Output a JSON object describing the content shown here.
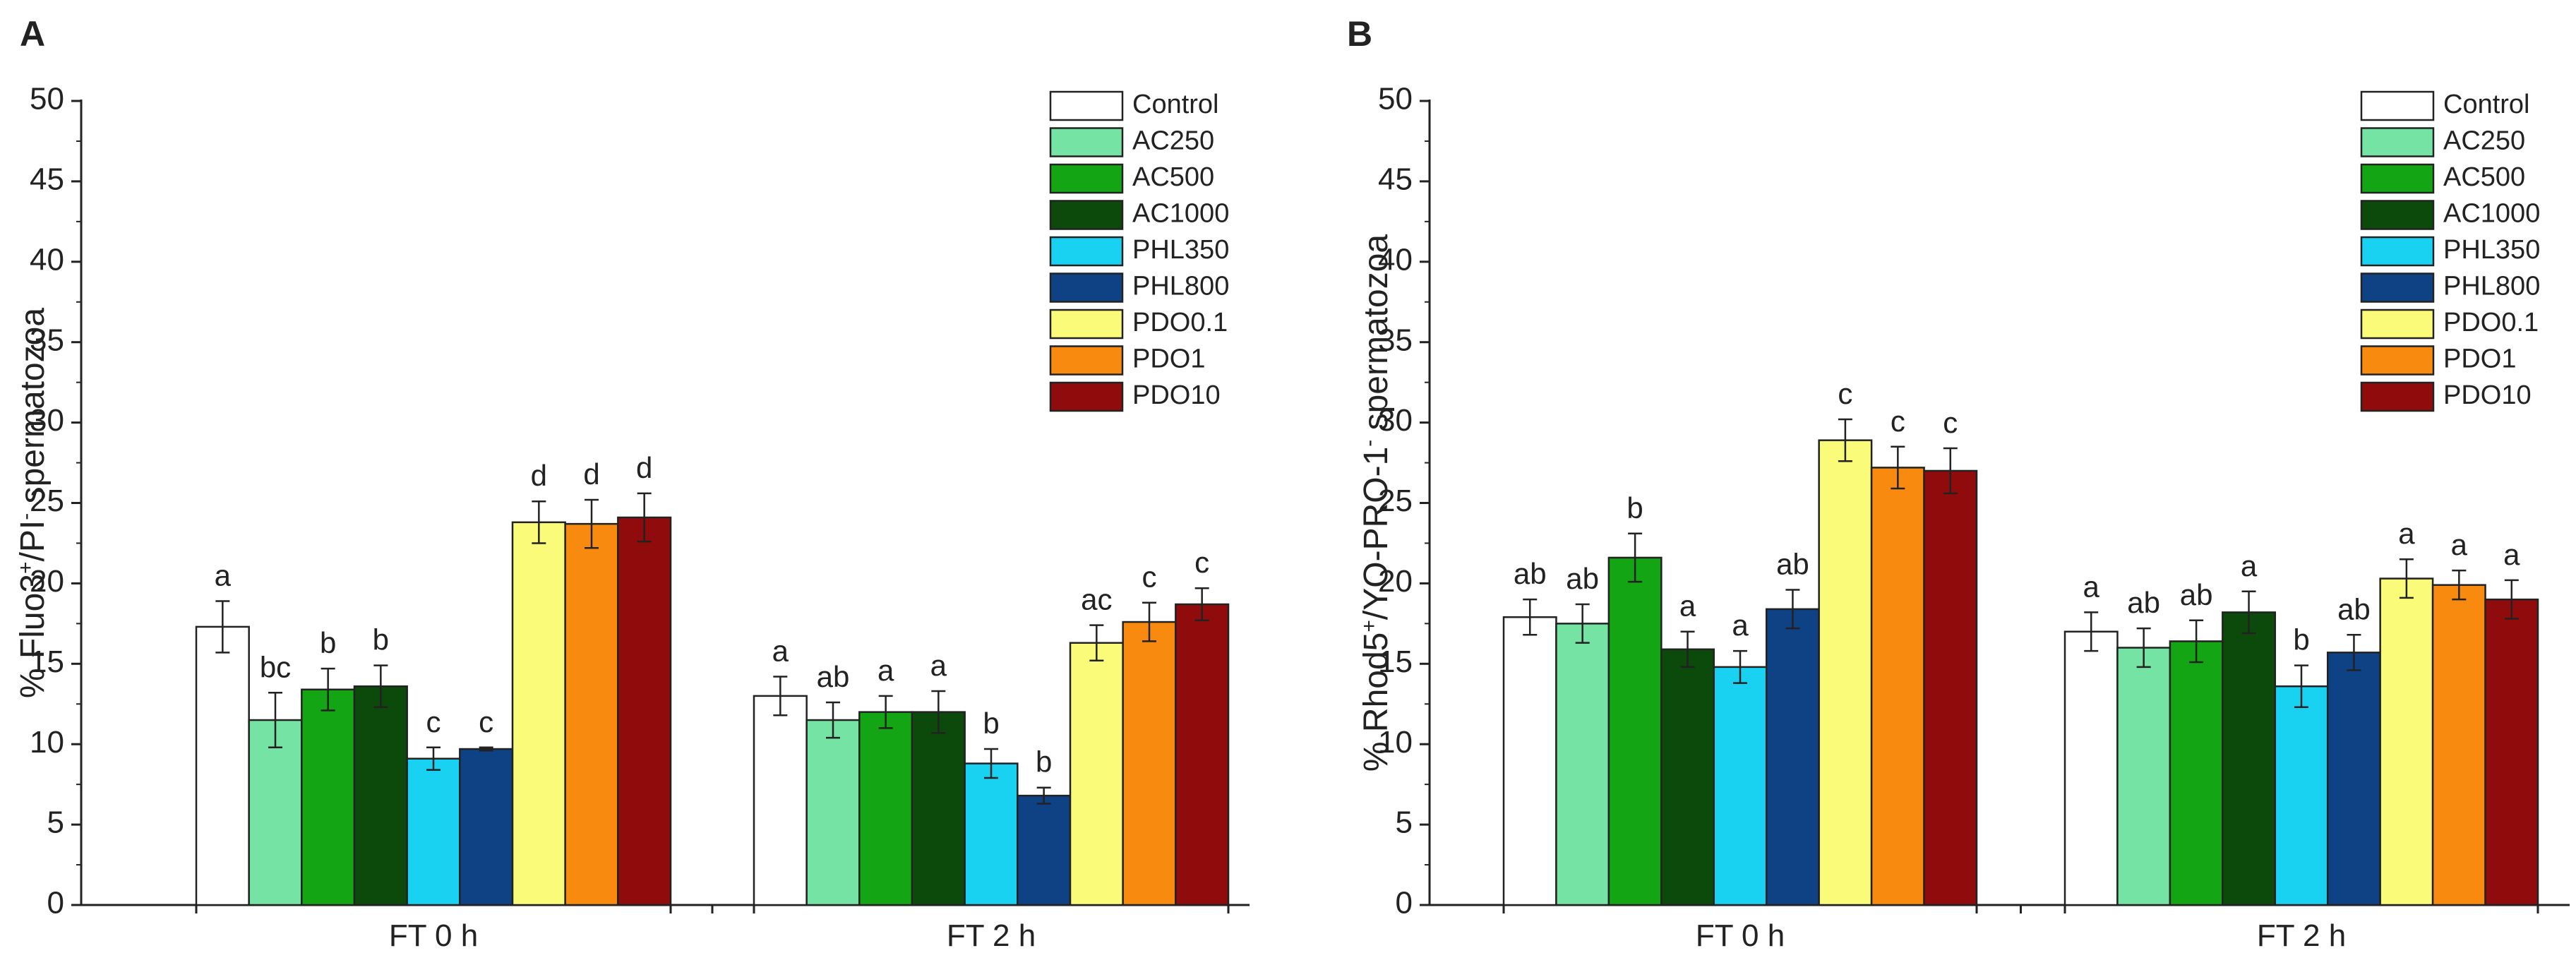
{
  "colors": {
    "Control": "#ffffff",
    "AC250": "#74e3a3",
    "AC500": "#13a513",
    "AC1000": "#0c4a0c",
    "PHL350": "#19d2f2",
    "PHL800": "#0e4284",
    "PDO0.1": "#fbfb7a",
    "PDO1": "#f98a10",
    "PDO10": "#900c0c"
  },
  "chart_data": [
    {
      "type": "bar",
      "panel_label": "A",
      "ylabel_parts": [
        "% Fluo3",
        "+",
        "/PI",
        "-",
        " spermatozoa"
      ],
      "ylim": [
        0,
        50
      ],
      "yticks": [
        0,
        5,
        10,
        15,
        20,
        25,
        30,
        35,
        40,
        45,
        50
      ],
      "categories": [
        "FT 0 h",
        "FT 2 h"
      ],
      "series": [
        {
          "name": "Control",
          "values": [
            17.3,
            13.0
          ],
          "errors": [
            1.6,
            1.2
          ],
          "letters": [
            "a",
            "a"
          ]
        },
        {
          "name": "AC250",
          "values": [
            11.5,
            11.5
          ],
          "errors": [
            1.7,
            1.1
          ],
          "letters": [
            "bc",
            "ab"
          ]
        },
        {
          "name": "AC500",
          "values": [
            13.4,
            12.0
          ],
          "errors": [
            1.3,
            1.0
          ],
          "letters": [
            "b",
            "a"
          ]
        },
        {
          "name": "AC1000",
          "values": [
            13.6,
            12.0
          ],
          "errors": [
            1.3,
            1.3
          ],
          "letters": [
            "b",
            "a"
          ]
        },
        {
          "name": "PHL350",
          "values": [
            9.1,
            8.8
          ],
          "errors": [
            0.7,
            0.9
          ],
          "letters": [
            "c",
            "b"
          ]
        },
        {
          "name": "PHL800",
          "values": [
            9.7,
            6.8
          ],
          "errors": [
            0.1,
            0.5
          ],
          "letters": [
            "c",
            "b"
          ]
        },
        {
          "name": "PDO0.1",
          "values": [
            23.8,
            16.3
          ],
          "errors": [
            1.3,
            1.1
          ],
          "letters": [
            "d",
            "ac"
          ]
        },
        {
          "name": "PDO1",
          "values": [
            23.7,
            17.6
          ],
          "errors": [
            1.5,
            1.2
          ],
          "letters": [
            "d",
            "c"
          ]
        },
        {
          "name": "PDO10",
          "values": [
            24.1,
            18.7
          ],
          "errors": [
            1.5,
            1.0
          ],
          "letters": [
            "d",
            "c"
          ]
        }
      ],
      "legend_position": "top-right"
    },
    {
      "type": "bar",
      "panel_label": "B",
      "ylabel_parts": [
        "% Rhod5",
        "+",
        "/YO-PRO-1",
        "-",
        " spermatozoa"
      ],
      "ylim": [
        0,
        50
      ],
      "yticks": [
        0,
        5,
        10,
        15,
        20,
        25,
        30,
        35,
        40,
        45,
        50
      ],
      "categories": [
        "FT 0 h",
        "FT 2 h"
      ],
      "series": [
        {
          "name": "Control",
          "values": [
            17.9,
            17.0
          ],
          "errors": [
            1.1,
            1.2
          ],
          "letters": [
            "ab",
            "a"
          ]
        },
        {
          "name": "AC250",
          "values": [
            17.5,
            16.0
          ],
          "errors": [
            1.2,
            1.2
          ],
          "letters": [
            "ab",
            "ab"
          ]
        },
        {
          "name": "AC500",
          "values": [
            21.6,
            16.4
          ],
          "errors": [
            1.5,
            1.3
          ],
          "letters": [
            "b",
            "ab"
          ]
        },
        {
          "name": "AC1000",
          "values": [
            15.9,
            18.2
          ],
          "errors": [
            1.1,
            1.3
          ],
          "letters": [
            "a",
            "a"
          ]
        },
        {
          "name": "PHL350",
          "values": [
            14.8,
            13.6
          ],
          "errors": [
            1.0,
            1.3
          ],
          "letters": [
            "a",
            "b"
          ]
        },
        {
          "name": "PHL800",
          "values": [
            18.4,
            15.7
          ],
          "errors": [
            1.2,
            1.1
          ],
          "letters": [
            "ab",
            "ab"
          ]
        },
        {
          "name": "PDO0.1",
          "values": [
            28.9,
            20.3
          ],
          "errors": [
            1.3,
            1.2
          ],
          "letters": [
            "c",
            "a"
          ]
        },
        {
          "name": "PDO1",
          "values": [
            27.2,
            19.9
          ],
          "errors": [
            1.3,
            0.9
          ],
          "letters": [
            "c",
            "a"
          ]
        },
        {
          "name": "PDO10",
          "values": [
            27.0,
            19.0
          ],
          "errors": [
            1.4,
            1.2
          ],
          "letters": [
            "c",
            "a"
          ]
        }
      ],
      "legend_position": "top-right"
    }
  ]
}
